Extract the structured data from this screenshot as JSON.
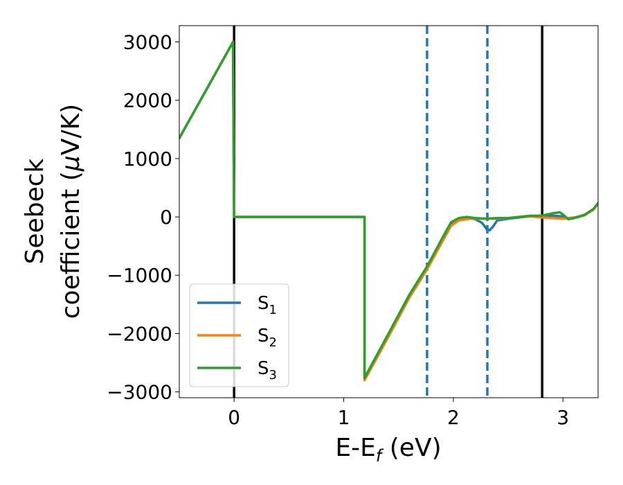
{
  "chart_data": {
    "type": "line",
    "xlabel": "E-E",
    "xlabel_sub": "f",
    "xlabel_unit": " (eV)",
    "ylabel_line1": "Seebeck",
    "ylabel_line2_pre": "coefficient  (",
    "ylabel_mu": "μ",
    "ylabel_line2_post": "V/K)",
    "xlim": [
      -0.5,
      3.32
    ],
    "ylim": [
      -3100,
      3280
    ],
    "xticks": [
      0,
      1,
      2,
      3
    ],
    "xtick_labels": [
      "0",
      "1",
      "2",
      "3"
    ],
    "yticks": [
      3000,
      2000,
      1000,
      0,
      -1000,
      -2000,
      -3000
    ],
    "ytick_labels": [
      "3000",
      "2000",
      "1000",
      "0",
      "−1000",
      "−2000",
      "−3000"
    ],
    "vlines_solid": [
      0.0,
      2.81
    ],
    "vlines_dashed": [
      1.76,
      2.31
    ],
    "vline_solid_color": "#000000",
    "vline_dashed_color": "#1f77b4",
    "legend": {
      "placement": "lower-left",
      "entries": [
        {
          "base": "S",
          "sub": "1",
          "color": "#1f77b4"
        },
        {
          "base": "S",
          "sub": "2",
          "color": "#ff7f0e"
        },
        {
          "base": "S",
          "sub": "3",
          "color": "#2ca02c"
        }
      ]
    },
    "series": [
      {
        "key": "S1",
        "color": "#1f77b4",
        "x": [
          -0.5,
          -0.01,
          -0.01,
          0.0,
          1.19,
          1.19,
          1.4,
          1.6,
          1.76,
          1.9,
          1.98,
          2.05,
          2.12,
          2.2,
          2.26,
          2.3,
          2.33,
          2.36,
          2.4,
          2.5,
          2.6,
          2.7,
          2.8,
          2.9,
          3.0,
          3.05,
          3.1,
          3.2,
          3.28,
          3.32
        ],
        "y": [
          1350,
          3000,
          3000,
          0,
          0,
          -2780,
          -2050,
          -1350,
          -870,
          -390,
          -120,
          -40,
          -20,
          -40,
          -100,
          -200,
          -230,
          -170,
          -60,
          -30,
          -10,
          10,
          20,
          20,
          10,
          -30,
          -20,
          30,
          130,
          230
        ]
      },
      {
        "key": "S2",
        "color": "#ff7f0e",
        "x": [
          -0.5,
          -0.01,
          -0.01,
          0.0,
          1.19,
          1.19,
          1.4,
          1.6,
          1.76,
          1.9,
          1.98,
          2.05,
          2.15,
          2.3,
          2.4,
          2.5,
          2.6,
          2.7,
          2.8,
          2.9,
          3.0,
          3.05,
          3.1,
          3.2,
          3.28,
          3.32
        ],
        "y": [
          1350,
          3000,
          3000,
          0,
          0,
          -2800,
          -2080,
          -1380,
          -900,
          -420,
          -150,
          -60,
          -30,
          -30,
          -30,
          -20,
          0,
          10,
          -10,
          -20,
          -30,
          -20,
          -10,
          30,
          130,
          230
        ]
      },
      {
        "key": "S3",
        "color": "#2ca02c",
        "x": [
          -0.5,
          -0.01,
          -0.01,
          0.0,
          1.19,
          1.19,
          1.4,
          1.6,
          1.76,
          1.9,
          1.98,
          2.05,
          2.12,
          2.2,
          2.3,
          2.4,
          2.5,
          2.6,
          2.7,
          2.8,
          2.9,
          2.97,
          3.0,
          3.05,
          3.1,
          3.2,
          3.28,
          3.32
        ],
        "y": [
          1350,
          3000,
          3000,
          0,
          0,
          -2760,
          -2030,
          -1330,
          -850,
          -360,
          -90,
          -20,
          0,
          -20,
          -30,
          -20,
          -20,
          0,
          20,
          20,
          60,
          80,
          40,
          -40,
          -20,
          40,
          140,
          240
        ]
      }
    ]
  }
}
